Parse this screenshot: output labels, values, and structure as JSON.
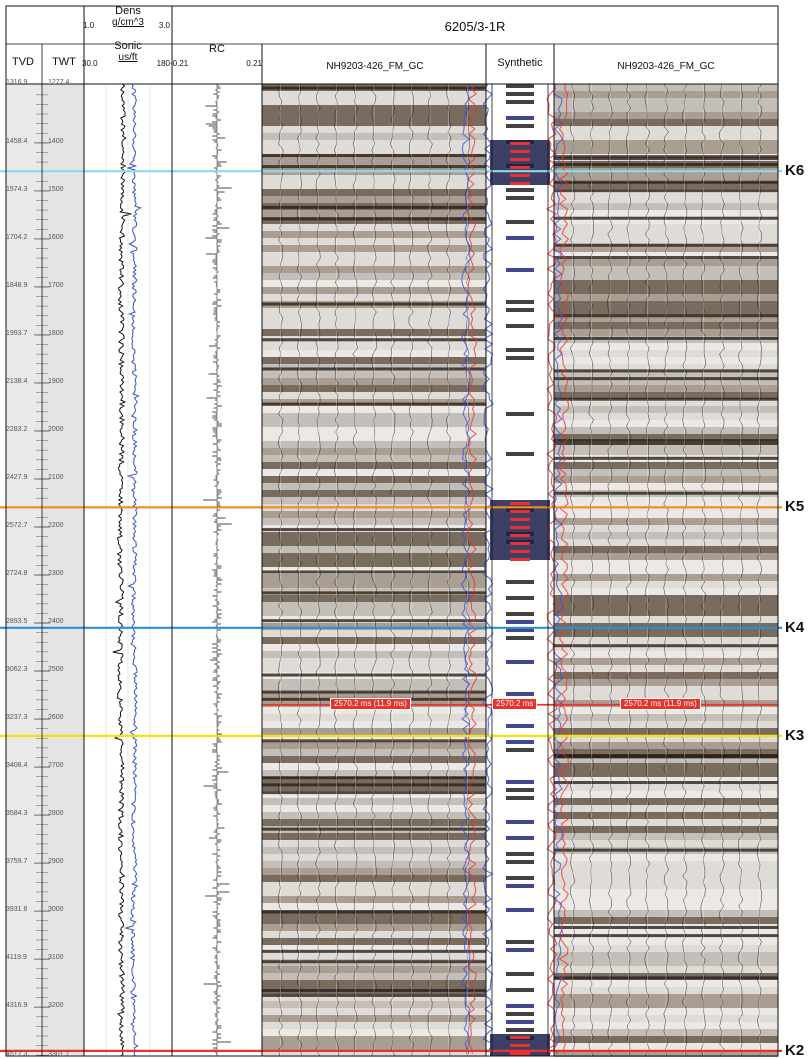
{
  "well_name": "6205/3-1R",
  "tracks": {
    "tvd_label": "TVD",
    "twt_label": "TWT",
    "density": {
      "name": "Dens",
      "unit": "g/cm^3",
      "min": "1.0",
      "max": "3.0"
    },
    "sonic": {
      "name": "Sonic",
      "unit": "us/ft",
      "min": "30.0",
      "max": "180"
    },
    "rc": {
      "name": "RC",
      "min": "-0.21",
      "max": "0.21"
    },
    "seismic_left": "NH9203-426_FM_GC",
    "synthetic": "Synthetic",
    "seismic_right": "NH9203-426_FM_GC"
  },
  "depth_ticks": [
    {
      "tvd": "1316.9",
      "twt": "1277.4"
    },
    {
      "tvd": "1458.4",
      "twt": "1400"
    },
    {
      "tvd": "1574.3",
      "twt": "1500"
    },
    {
      "tvd": "1704.2",
      "twt": "1600"
    },
    {
      "tvd": "1848.9",
      "twt": "1700"
    },
    {
      "tvd": "1993.7",
      "twt": "1800"
    },
    {
      "tvd": "2138.4",
      "twt": "1900"
    },
    {
      "tvd": "2283.2",
      "twt": "2000"
    },
    {
      "tvd": "2427.9",
      "twt": "2100"
    },
    {
      "tvd": "2572.7",
      "twt": "2200"
    },
    {
      "tvd": "2724.8",
      "twt": "2300"
    },
    {
      "tvd": "2893.5",
      "twt": "2400"
    },
    {
      "tvd": "3062.3",
      "twt": "2500"
    },
    {
      "tvd": "3237.3",
      "twt": "2600"
    },
    {
      "tvd": "3408.4",
      "twt": "2700"
    },
    {
      "tvd": "3584.3",
      "twt": "2800"
    },
    {
      "tvd": "3759.7",
      "twt": "2900"
    },
    {
      "tvd": "3931.6",
      "twt": "3000"
    },
    {
      "tvd": "4119.9",
      "twt": "3100"
    },
    {
      "tvd": "4316.9",
      "twt": "3200"
    },
    {
      "tvd": "4517.3",
      "twt": "3301.7"
    }
  ],
  "horizons": [
    {
      "name": "K6",
      "twt": 1459,
      "color": "#8ed8ec"
    },
    {
      "name": "K5",
      "twt": 2159,
      "color": "#f08a24"
    },
    {
      "name": "K4",
      "twt": 2410,
      "color": "#2f8fd6"
    },
    {
      "name": "K3",
      "twt": 2635,
      "color": "#f2e20f"
    },
    {
      "name": "K2",
      "twt": 3291,
      "color": "#e8322c"
    }
  ],
  "pick": {
    "twt": 2570.2,
    "left_label": "2570.2 ms (11.9 ms)",
    "synthetic_label": "2570.2 ms",
    "right_label": "2570.2 ms (11.9 ms)",
    "color": "#e8322c"
  }
}
